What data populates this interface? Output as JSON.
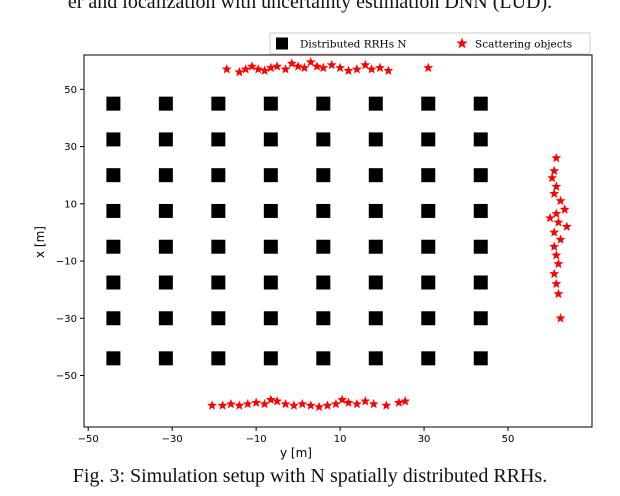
{
  "page": {
    "top_caption": "er and localization with uncertainty estimation DNN (LUD).",
    "bottom_caption": "Fig. 3: Simulation setup with N spatially distributed RRHs."
  },
  "colors": {
    "rrh": "#000000",
    "scatter": "#ff0000",
    "frame": "#000000"
  },
  "chart_data": {
    "type": "scatter",
    "xlabel": "y [m]",
    "ylabel": "x [m]",
    "xlim": [
      -51,
      70
    ],
    "ylim": [
      -68,
      62
    ],
    "xticks": [
      -50,
      -30,
      -10,
      10,
      30,
      50
    ],
    "yticks": [
      50,
      30,
      10,
      -10,
      -30,
      -50
    ],
    "grid": false,
    "legend_placement": "top-right",
    "series": [
      {
        "name": "Distributed RRHs N",
        "marker": "square",
        "color": "#000000",
        "x_values": [
          -44,
          -31.5,
          -19,
          -6.5,
          6,
          18.5,
          31,
          43.5
        ],
        "y_values": [
          45,
          32.5,
          20,
          7.5,
          -5,
          -17.5,
          -30,
          -44
        ],
        "layout": "grid"
      },
      {
        "name": "Scattering objects",
        "marker": "star",
        "color": "#ff0000",
        "points": [
          [
            -17,
            57
          ],
          [
            -14,
            56
          ],
          [
            -12.5,
            57
          ],
          [
            -11,
            58
          ],
          [
            -9.5,
            57
          ],
          [
            -8,
            56.5
          ],
          [
            -6.5,
            57.5
          ],
          [
            -5,
            58
          ],
          [
            -3,
            57
          ],
          [
            -1.5,
            59
          ],
          [
            0,
            58
          ],
          [
            1.5,
            57.5
          ],
          [
            3,
            59.5
          ],
          [
            4.5,
            58
          ],
          [
            6,
            57.5
          ],
          [
            8,
            58.5
          ],
          [
            10,
            57.5
          ],
          [
            12,
            56.5
          ],
          [
            14,
            57
          ],
          [
            16,
            58.5
          ],
          [
            17.5,
            57
          ],
          [
            19.5,
            57.5
          ],
          [
            21.5,
            56.5
          ],
          [
            31,
            57.5
          ],
          [
            -20.5,
            -60.5
          ],
          [
            -18,
            -60.5
          ],
          [
            -16,
            -60
          ],
          [
            -14,
            -60.5
          ],
          [
            -12,
            -60
          ],
          [
            -10,
            -59.5
          ],
          [
            -8,
            -60
          ],
          [
            -6.5,
            -58.5
          ],
          [
            -5,
            -59
          ],
          [
            -3,
            -60
          ],
          [
            -1,
            -60.5
          ],
          [
            1,
            -60
          ],
          [
            3,
            -60.5
          ],
          [
            5,
            -61
          ],
          [
            7,
            -60.5
          ],
          [
            9,
            -60
          ],
          [
            10.5,
            -58.5
          ],
          [
            12,
            -59.5
          ],
          [
            14,
            -60
          ],
          [
            16,
            -59
          ],
          [
            18,
            -60
          ],
          [
            21,
            -60.5
          ],
          [
            24,
            -59.5
          ],
          [
            25.5,
            -59
          ],
          [
            61.5,
            26
          ],
          [
            61,
            21.5
          ],
          [
            60.5,
            19
          ],
          [
            61.5,
            16
          ],
          [
            61,
            13.5
          ],
          [
            62.5,
            11
          ],
          [
            63.5,
            8
          ],
          [
            61.5,
            6.5
          ],
          [
            60,
            5
          ],
          [
            62,
            3.5
          ],
          [
            64,
            2
          ],
          [
            61,
            0
          ],
          [
            62.5,
            -2.5
          ],
          [
            61,
            -5
          ],
          [
            61.5,
            -8
          ],
          [
            62,
            -11
          ],
          [
            61,
            -14.5
          ],
          [
            61.5,
            -18
          ],
          [
            62,
            -21.5
          ],
          [
            62.5,
            -30
          ]
        ]
      }
    ]
  }
}
